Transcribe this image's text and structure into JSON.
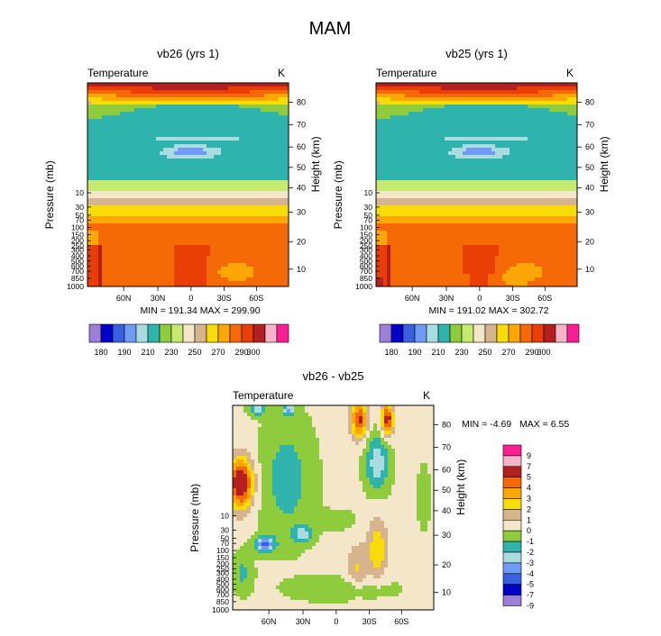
{
  "title": "MAM",
  "palette": [
    "#9b7fd8",
    "#0000c8",
    "#3a5fe0",
    "#6f9bf5",
    "#a8dce0",
    "#2fb4ad",
    "#8ecb3d",
    "#c4ea6f",
    "#f3e6c9",
    "#d6b48e",
    "#f8dc06",
    "#fca706",
    "#f56a06",
    "#e93e06",
    "#b41f1f",
    "#f5b4c8",
    "#fd1e96"
  ],
  "chart_data": [
    {
      "type": "heatmap",
      "id": "top-left",
      "title": "vb26 (yrs 1)",
      "left_label": "Temperature",
      "right_label": "K",
      "ylabel": "Pressure (mb)",
      "y2label": "Height (km)",
      "pressure_ticks": [
        "10",
        "30",
        "50",
        "70",
        "100",
        "150",
        "200",
        "250",
        "300",
        "400",
        "500",
        "600",
        "700",
        "850",
        "1000"
      ],
      "height_ticks": [
        "80",
        "70",
        "60",
        "50",
        "40",
        "30",
        "20",
        "10"
      ],
      "lat_ticks": [
        "60N",
        "30N",
        "0",
        "30S",
        "60S"
      ],
      "stats": "MIN = 191.34  MAX = 299.90",
      "colorbar_ticks": [
        "180",
        "190",
        "210",
        "230",
        "250",
        "270",
        "290",
        "300"
      ],
      "units": "K",
      "min": 191.34,
      "max": 299.9
    },
    {
      "type": "heatmap",
      "id": "top-right",
      "title": "vb25 (yrs 1)",
      "left_label": "Temperature",
      "right_label": "K",
      "ylabel": "Pressure (mb)",
      "y2label": "Height (km)",
      "pressure_ticks": [
        "10",
        "30",
        "50",
        "70",
        "100",
        "150",
        "200",
        "250",
        "300",
        "400",
        "500",
        "600",
        "700",
        "850",
        "1000"
      ],
      "height_ticks": [
        "80",
        "70",
        "60",
        "50",
        "40",
        "30",
        "20",
        "10"
      ],
      "lat_ticks": [
        "60N",
        "30N",
        "0",
        "30S",
        "60S"
      ],
      "stats": "MIN = 191.02  MAX = 302.72",
      "colorbar_ticks": [
        "180",
        "190",
        "210",
        "230",
        "250",
        "270",
        "290",
        "300"
      ],
      "units": "K",
      "min": 191.02,
      "max": 302.72
    },
    {
      "type": "heatmap",
      "id": "bottom",
      "title": "vb26 - vb25",
      "left_label": "Temperature",
      "right_label": "K",
      "ylabel": "Pressure (mb)",
      "y2label": "Height (km)",
      "pressure_ticks": [
        "10",
        "30",
        "50",
        "70",
        "100",
        "150",
        "200",
        "250",
        "300",
        "400",
        "500",
        "600",
        "700",
        "850",
        "1000"
      ],
      "height_ticks": [
        "80",
        "70",
        "60",
        "50",
        "40",
        "30",
        "20",
        "10"
      ],
      "lat_ticks": [
        "60N",
        "30N",
        "0",
        "30S",
        "60S"
      ],
      "stats_min": "MIN =  -4.69",
      "stats_max": "MAX =   6.55",
      "colorbar_ticks": [
        "9",
        "7",
        "5",
        "4",
        "3",
        "2",
        "1",
        "0",
        "-1",
        "-2",
        "-3",
        "-4",
        "-5",
        "-7",
        "-9"
      ],
      "min": -4.69,
      "max": 6.55
    }
  ]
}
